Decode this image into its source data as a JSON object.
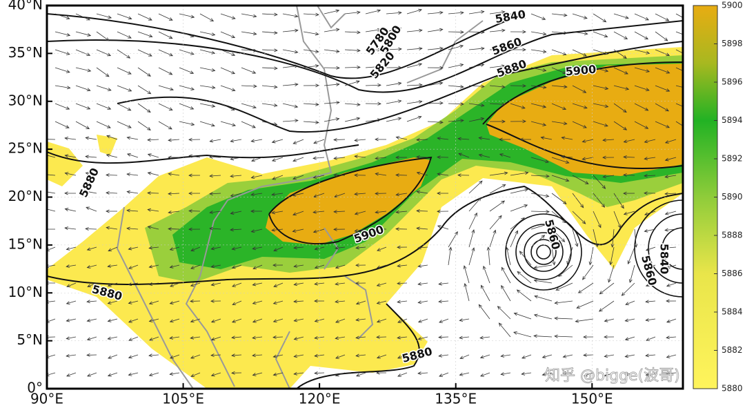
{
  "map": {
    "xlim": [
      90,
      160
    ],
    "ylim": [
      0,
      40
    ],
    "xticks": [
      {
        "value": 90,
        "label": "90°E"
      },
      {
        "value": 105,
        "label": "105°E"
      },
      {
        "value": 120,
        "label": "120°E"
      },
      {
        "value": 135,
        "label": "135°E"
      },
      {
        "value": 150,
        "label": "150°E"
      }
    ],
    "yticks": [
      {
        "value": 0,
        "label": "0°"
      },
      {
        "value": 5,
        "label": "5°N"
      },
      {
        "value": 10,
        "label": "10°N"
      },
      {
        "value": 15,
        "label": "15°N"
      },
      {
        "value": 20,
        "label": "20°N"
      },
      {
        "value": 25,
        "label": "25°N"
      },
      {
        "value": 30,
        "label": "30°N"
      },
      {
        "value": 35,
        "label": "35°N"
      },
      {
        "value": 40,
        "label": "40°N"
      }
    ],
    "colorbar": {
      "lim": [
        5880,
        5900
      ],
      "ticks": [
        5880,
        5882,
        5884,
        5886,
        5888,
        5890,
        5892,
        5894,
        5896,
        5898,
        5900
      ]
    },
    "contour_labels": [
      5840,
      5780,
      5800,
      5820,
      5860,
      5880,
      5900,
      5880,
      5900,
      5880,
      5880,
      5860,
      5840,
      5860
    ],
    "watermark": "知乎 @bigge(波哥)"
  }
}
